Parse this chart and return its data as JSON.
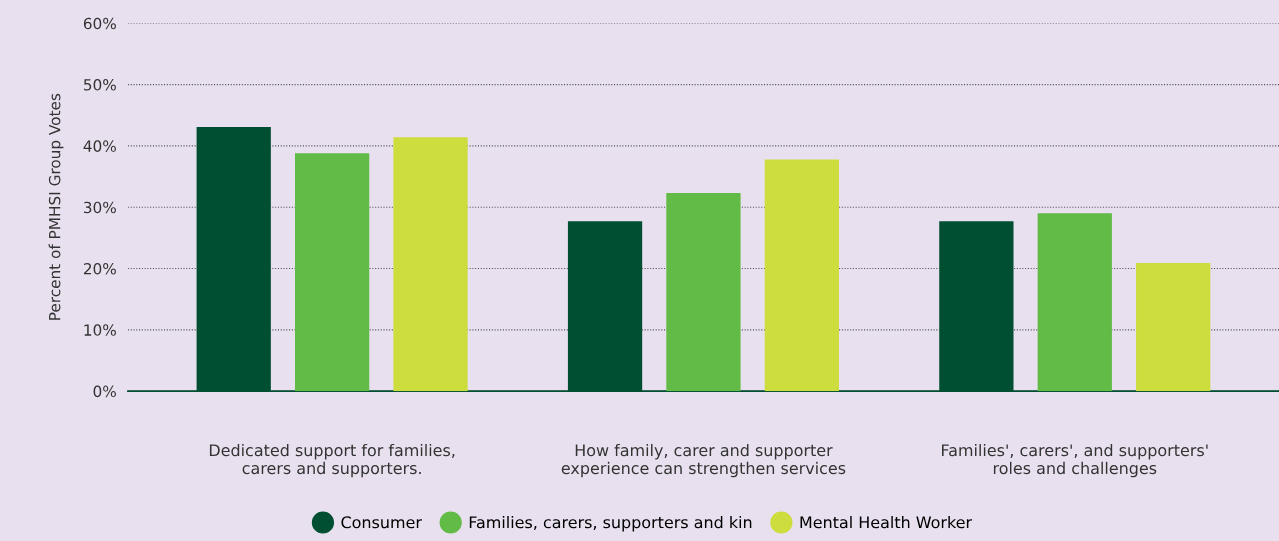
{
  "chart_data": {
    "type": "bar",
    "ylabel": "Percent of PMHSI Group Votes",
    "categories": [
      "Dedicated support for families,\ncarers and supporters.",
      "How family, carer and supporter\nexperience can strengthen services",
      "Families', carers', and supporters'\nroles and challenges"
    ],
    "series": [
      {
        "name": "Consumer",
        "color": "#004f32",
        "values": [
          43.1,
          27.7,
          27.7
        ]
      },
      {
        "name": "Families, carers, supporters and kin",
        "color": "#62bb46",
        "values": [
          38.8,
          32.3,
          29.0
        ]
      },
      {
        "name": "Mental Health Worker",
        "color": "#cddd3e",
        "values": [
          41.4,
          37.8,
          20.9
        ]
      }
    ],
    "ylim": [
      0,
      60
    ],
    "yticks": [
      {
        "value": 0,
        "label": "0%"
      },
      {
        "value": 10,
        "label": "10%"
      },
      {
        "value": 20,
        "label": "20%"
      },
      {
        "value": 30,
        "label": "30%"
      },
      {
        "value": 40,
        "label": "40%"
      },
      {
        "value": 50,
        "label": "50%"
      },
      {
        "value": 60,
        "label": "60%"
      }
    ],
    "grid": "y",
    "legend": "bottom"
  }
}
